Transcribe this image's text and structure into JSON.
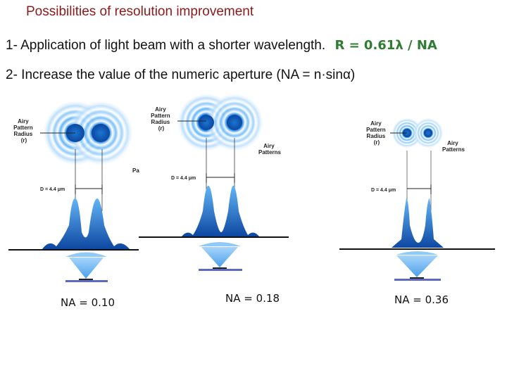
{
  "title": "Possibilities of resolution improvement",
  "point1": {
    "text": "1- Application of light beam with a shorter wavelength.",
    "formula": "R = 0.61λ / NA"
  },
  "point2": {
    "text": "2- Increase  the value of the  numeric aperture (NA = n·sinα)"
  },
  "figure_labels": {
    "airy_radius": [
      "Airy",
      "Pattern",
      "Radius",
      "(r)"
    ],
    "airy_patterns": [
      "Airy",
      "Patterns"
    ],
    "distance": "D = 4.4 μm",
    "cropped_fragment": "Pa"
  },
  "panels": [
    {
      "na_label": "NA = 0.10"
    },
    {
      "na_label": "NA = 0.18"
    },
    {
      "na_label": "NA = 0.36"
    }
  ],
  "colors": {
    "title": "#8b1a1a",
    "formula": "#2e7d32",
    "airy_blue": "#1565c0"
  }
}
